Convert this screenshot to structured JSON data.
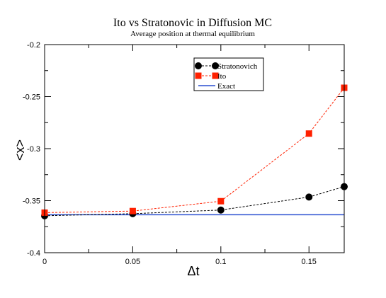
{
  "chart_data": {
    "type": "line",
    "title": "Ito vs Stratonovic in Diffusion MC",
    "subtitle": "Average position at thermal equilibrium",
    "xlabel": "Δt",
    "ylabel": "<x>",
    "xlim": [
      0,
      0.17
    ],
    "ylim": [
      -0.4,
      -0.2
    ],
    "xticks": [
      0,
      0.05,
      0.1,
      0.15
    ],
    "xtick_labels": [
      "0",
      "0.05",
      "0.1",
      "0.15"
    ],
    "yticks": [
      -0.4,
      -0.35,
      -0.3,
      -0.25,
      -0.2
    ],
    "ytick_labels": [
      "-0.4",
      "-0.35",
      "-0.3",
      "-0.25",
      "-0.2"
    ],
    "grid": false,
    "legend_position": "top-right",
    "series": [
      {
        "name": "Stratonovich",
        "color": "#000000",
        "marker": "circle",
        "line": "dashed",
        "x": [
          0,
          0.05,
          0.1,
          0.15,
          0.17
        ],
        "y": [
          -0.3645,
          -0.3625,
          -0.359,
          -0.3465,
          -0.3365
        ]
      },
      {
        "name": "Ito",
        "color": "#ff2000",
        "marker": "square",
        "line": "dashed",
        "x": [
          0,
          0.05,
          0.1,
          0.15,
          0.17
        ],
        "y": [
          -0.3615,
          -0.36,
          -0.3505,
          -0.2855,
          -0.2415
        ]
      },
      {
        "name": "Exact",
        "color": "#2a4fd0",
        "marker": "none",
        "line": "solid",
        "x": [
          0,
          0.17
        ],
        "y": [
          -0.3635,
          -0.3635
        ]
      }
    ]
  }
}
